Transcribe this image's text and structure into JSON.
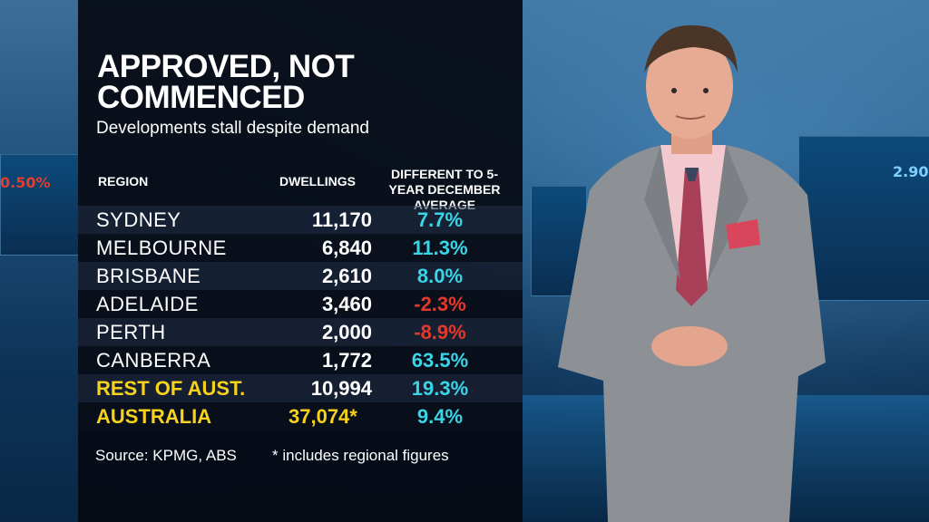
{
  "title": "APPROVED, NOT COMMENCED",
  "subtitle": "Developments stall despite demand",
  "table": {
    "headers": {
      "region": "REGION",
      "dwellings": "DWELLINGS",
      "diff": "DIFFERENT TO 5-YEAR DECEMBER AVERAGE"
    },
    "rows": [
      {
        "region": "SYDNEY",
        "dwellings": "11,170",
        "diff": "7.7%"
      },
      {
        "region": "MELBOURNE",
        "dwellings": "6,840",
        "diff": "11.3%"
      },
      {
        "region": "BRISBANE",
        "dwellings": "2,610",
        "diff": "8.0%"
      },
      {
        "region": "ADELAIDE",
        "dwellings": "3,460",
        "diff": "-2.3%"
      },
      {
        "region": "PERTH",
        "dwellings": "2,000",
        "diff": "-8.9%"
      },
      {
        "region": "CANBERRA",
        "dwellings": "1,772",
        "diff": "63.5%"
      },
      {
        "region": "REST OF AUST.",
        "dwellings": "10,994",
        "diff": "19.3%"
      },
      {
        "region": "AUSTRALIA",
        "dwellings": "37,074*",
        "diff": "9.4%"
      }
    ]
  },
  "footer": {
    "source": "Source: KPMG, ABS",
    "note": "* includes regional figures"
  },
  "background_tickers": [
    "0.50%",
    "2.90"
  ],
  "colors": {
    "positive": "#39d5e6",
    "negative": "#e6382a",
    "highlight": "#f6d21c"
  }
}
